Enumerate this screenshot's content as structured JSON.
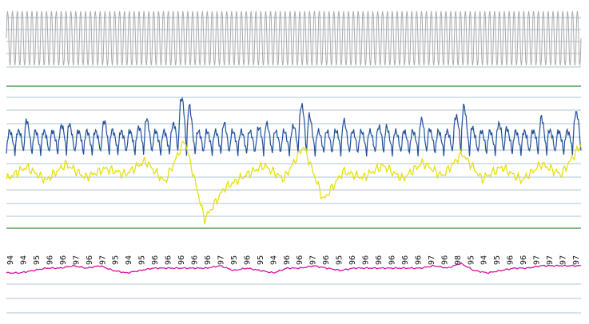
{
  "chart_data": [
    {
      "type": "line",
      "panel": "top",
      "title": "",
      "xlabel": "",
      "ylabel": "",
      "grid": true,
      "ylim": [
        -1,
        1
      ],
      "series": [
        {
          "color": "#a9a9a9",
          "values": [
            -0.9,
            0.8,
            -0.9,
            0.9,
            -0.8,
            0.9,
            -0.9,
            0.8,
            -0.9,
            0.9,
            -0.8,
            0.9,
            -0.9,
            0.8,
            -0.9,
            0.9,
            -0.9,
            0.8,
            -0.9,
            0.9
          ]
        }
      ]
    },
    {
      "type": "line",
      "panel": "middle",
      "title": "",
      "xlabel": "",
      "ylabel": "",
      "grid": true,
      "ylim": [
        0,
        10
      ],
      "series": [
        {
          "color": "#1f4e9a",
          "values": [
            5.5,
            7.6,
            5.3,
            7.7,
            5.4,
            7.6,
            5.5,
            7.8,
            5.6,
            9.7,
            4.8,
            7.4,
            5.5,
            7.6,
            5.6,
            8.9,
            5.4,
            7.6,
            5.5,
            7.5,
            5.4,
            7.7,
            5.6,
            8.8,
            5.5,
            7.6,
            5.3,
            7.8,
            5.6,
            8.9
          ]
        },
        {
          "color": "#e5de00",
          "values": [
            3.6,
            4.4,
            3.5,
            4.6,
            3.7,
            4.3,
            3.9,
            4.8,
            3.4,
            6.2,
            0.9,
            3.0,
            3.8,
            4.5,
            3.6,
            5.8,
            2.2,
            4.1,
            3.7,
            4.5,
            3.6,
            4.7,
            3.8,
            5.3,
            3.6,
            4.4,
            3.5,
            4.6,
            3.9,
            5.9
          ]
        }
      ]
    },
    {
      "type": "line",
      "panel": "bottom",
      "title": "",
      "xlabel": "",
      "ylabel": "",
      "grid": true,
      "ylim": [
        80,
        100
      ],
      "series": [
        {
          "color": "#d4149f",
          "values": [
            94,
            94,
            95,
            96,
            96,
            97,
            96,
            97,
            95,
            94,
            95,
            96,
            96,
            96,
            96,
            96,
            97,
            95,
            96,
            95,
            94,
            96,
            96,
            97,
            96,
            95,
            96,
            96,
            96,
            96,
            96,
            96,
            97,
            96,
            98,
            95,
            94,
            95,
            96,
            96,
            97,
            97,
            97,
            97
          ]
        }
      ],
      "tick_labels": [
        "94",
        "94",
        "95",
        "96",
        "96",
        "97",
        "96",
        "97",
        "95",
        "94",
        "95",
        "96",
        "96",
        "96",
        "96",
        "96",
        "97",
        "95",
        "96",
        "95",
        "94",
        "96",
        "96",
        "97",
        "96",
        "95",
        "96",
        "96",
        "96",
        "96",
        "96",
        "96",
        "97",
        "96",
        "98",
        "95",
        "94",
        "95",
        "96",
        "96",
        "97",
        "97",
        "97",
        "97"
      ]
    }
  ]
}
